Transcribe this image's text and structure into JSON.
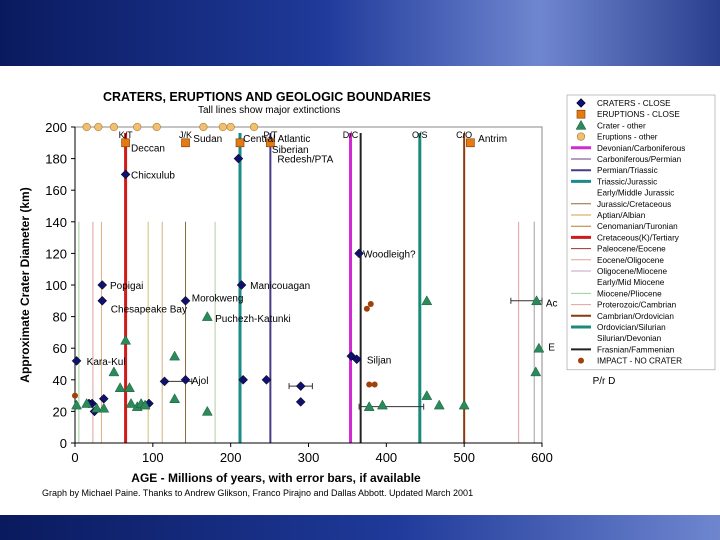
{
  "chart_data": {
    "type": "scatter",
    "title": "CRATERS, ERUPTIONS  AND GEOLOGIC BOUNDARIES",
    "subtitle": "Tall lines show major extinctions",
    "xlabel": "AGE - Millions of years, with error bars, if available",
    "ylabel": "Approximate Crater Diameter (km)",
    "xlim": [
      0,
      600
    ],
    "ylim": [
      0,
      200
    ],
    "xticks": [
      "0",
      "100",
      "200",
      "300",
      "400",
      "500",
      "600"
    ],
    "yticks": [
      "0",
      "20",
      "40",
      "60",
      "80",
      "100",
      "120",
      "140",
      "160",
      "180",
      "200"
    ],
    "grid": false,
    "legend_position": "right",
    "credit": "Graph by Michael Paine. Thanks to Andrew Glikson, Franco Pirajno and Dallas Abbott. Updated March 2001",
    "boundary_labels": [
      {
        "text": "K/T",
        "x": 65
      },
      {
        "text": "J/K",
        "x": 142
      },
      {
        "text": "P/T",
        "x": 251
      },
      {
        "text": "D/C",
        "x": 354
      },
      {
        "text": "O/S",
        "x": 443
      },
      {
        "text": "C/O",
        "x": 500
      }
    ],
    "boundaries": [
      {
        "x": 65,
        "color": "#d11a1a",
        "tall": true,
        "width": 3
      },
      {
        "x": 142,
        "color": "#8a6a3a",
        "tall": false,
        "width": 1
      },
      {
        "x": 212,
        "color": "#1a8a8a",
        "tall": true,
        "width": 3
      },
      {
        "x": 251,
        "color": "#4a3a8a",
        "tall": true,
        "width": 2
      },
      {
        "x": 354,
        "color": "#d02ad0",
        "tall": true,
        "width": 3
      },
      {
        "x": 367,
        "color": "#222222",
        "tall": true,
        "width": 2
      },
      {
        "x": 443,
        "color": "#1a8a7a",
        "tall": true,
        "width": 3
      },
      {
        "x": 500,
        "color": "#8b3a0a",
        "tall": true,
        "width": 2
      },
      {
        "x": 23,
        "color": "#e0a0a0",
        "tall": false,
        "width": 1
      },
      {
        "x": 34,
        "color": "#e0b080",
        "tall": false,
        "width": 1
      },
      {
        "x": 5,
        "color": "#9ad09a",
        "tall": false,
        "width": 1
      },
      {
        "x": 112,
        "color": "#d0b080",
        "tall": false,
        "width": 1
      },
      {
        "x": 94,
        "color": "#d0c070",
        "tall": false,
        "width": 1
      },
      {
        "x": 180,
        "color": "#b0d0a0",
        "tall": false,
        "width": 1
      },
      {
        "x": 570,
        "color": "#e0a0a0",
        "tall": false,
        "width": 1
      },
      {
        "x": 590,
        "color": "#a0a0a0",
        "tall": false,
        "width": 1
      }
    ],
    "series": [
      {
        "name": "CRATERS - CLOSE",
        "marker": "diamond",
        "color": "#10106e",
        "points": [
          [
            65,
            170
          ],
          [
            35,
            100
          ],
          [
            35,
            90
          ],
          [
            142,
            90
          ],
          [
            214,
            100
          ],
          [
            365,
            120
          ],
          [
            2,
            52
          ],
          [
            355,
            55
          ],
          [
            362,
            53
          ],
          [
            37,
            28
          ],
          [
            22,
            25
          ],
          [
            18,
            25
          ],
          [
            25,
            20
          ],
          [
            95,
            25
          ],
          [
            115,
            39
          ],
          [
            142,
            40
          ],
          [
            216,
            40
          ],
          [
            246,
            40
          ],
          [
            290,
            36
          ],
          [
            290,
            26
          ],
          [
            210,
            180
          ]
        ]
      },
      {
        "name": "ERUPTIONS - CLOSE",
        "marker": "square",
        "color": "#e57b10",
        "points": [
          [
            65,
            190
          ],
          [
            142,
            190
          ],
          [
            212,
            190
          ],
          [
            251,
            190
          ],
          [
            508,
            190
          ]
        ]
      },
      {
        "name": "Crater - other",
        "marker": "triangle",
        "color": "#2a8a5a",
        "points": [
          [
            2,
            24
          ],
          [
            15,
            25
          ],
          [
            28,
            22
          ],
          [
            37,
            22
          ],
          [
            50,
            45
          ],
          [
            58,
            35
          ],
          [
            65,
            65
          ],
          [
            70,
            35
          ],
          [
            72,
            25
          ],
          [
            80,
            23
          ],
          [
            85,
            25
          ],
          [
            90,
            24
          ],
          [
            128,
            55
          ],
          [
            128,
            28
          ],
          [
            170,
            80
          ],
          [
            170,
            20
          ],
          [
            378,
            23
          ],
          [
            395,
            24
          ],
          [
            452,
            90
          ],
          [
            452,
            30
          ],
          [
            468,
            24
          ],
          [
            500,
            24
          ],
          [
            593,
            90
          ],
          [
            596,
            60
          ],
          [
            592,
            45
          ]
        ]
      },
      {
        "name": "Eruptions - other",
        "marker": "circle",
        "color": "#f0c070",
        "points": [
          [
            15,
            200
          ],
          [
            30,
            200
          ],
          [
            50,
            200
          ],
          [
            80,
            200
          ],
          [
            105,
            200
          ],
          [
            165,
            200
          ],
          [
            190,
            200
          ],
          [
            200,
            200
          ],
          [
            230,
            200
          ]
        ]
      },
      {
        "name": "IMPACT - NO CRATER",
        "marker": "dot",
        "color": "#a0400a",
        "points": [
          [
            0,
            30
          ],
          [
            375,
            85
          ],
          [
            380,
            88
          ],
          [
            378,
            37
          ],
          [
            385,
            37
          ]
        ]
      }
    ],
    "error_bars": [
      {
        "x": 290,
        "y": 36,
        "lo": 275,
        "hi": 305
      },
      {
        "x": 395,
        "y": 23,
        "lo": 365,
        "hi": 448
      },
      {
        "x": 593,
        "y": 90,
        "lo": 560,
        "hi": 600
      },
      {
        "x": 130,
        "y": 39,
        "lo": 115,
        "hi": 150
      }
    ],
    "annotations": [
      {
        "text": "Deccan",
        "x": 72,
        "y": 187
      },
      {
        "text": "Sudan",
        "x": 152,
        "y": 193
      },
      {
        "text": "Central Atlantic",
        "x": 216,
        "y": 193
      },
      {
        "text": "Siberian",
        "x": 253,
        "y": 186
      },
      {
        "text": "Redesh/PTA",
        "x": 260,
        "y": 180
      },
      {
        "text": "Antrim",
        "x": 518,
        "y": 193
      },
      {
        "text": "Chicxulub",
        "x": 72,
        "y": 170
      },
      {
        "text": "Woodleigh?",
        "x": 370,
        "y": 120
      },
      {
        "text": "Popigai",
        "x": 45,
        "y": 100
      },
      {
        "text": "Manicouagan",
        "x": 225,
        "y": 100
      },
      {
        "text": "Morokweng",
        "x": 150,
        "y": 92
      },
      {
        "text": "Chesapeake Bay",
        "x": 46,
        "y": 85
      },
      {
        "text": "Puchezh-Katunki",
        "x": 180,
        "y": 79
      },
      {
        "text": "Siljan",
        "x": 375,
        "y": 53
      },
      {
        "text": "Kara-Kul",
        "x": 15,
        "y": 52
      },
      {
        "text": "Ajol",
        "x": 150,
        "y": 40
      },
      {
        "text": "Ac",
        "x": 605,
        "y": 89
      },
      {
        "text": "E",
        "x": 608,
        "y": 61
      },
      {
        "text": "P/r D",
        "x": 665,
        "y": 40
      }
    ],
    "legend": [
      {
        "label": "CRATERS - CLOSE",
        "kind": "diamond",
        "color": "#10106e"
      },
      {
        "label": "ERUPTIONS - CLOSE",
        "kind": "square",
        "color": "#e57b10"
      },
      {
        "label": "Crater - other",
        "kind": "triangle",
        "color": "#2a8a5a"
      },
      {
        "label": "Eruptions - other",
        "kind": "circle",
        "color": "#f0c070"
      },
      {
        "label": "Devonian/Carboniferous",
        "kind": "line",
        "color": "#d02ad0",
        "w": 3
      },
      {
        "label": "Carboniferous/Permian",
        "kind": "line",
        "color": "#6a3a8a",
        "w": 1
      },
      {
        "label": "Permian/Triassic",
        "kind": "line",
        "color": "#4a3a8a",
        "w": 2
      },
      {
        "label": "Triassic/Jurassic",
        "kind": "line",
        "color": "#1a8a8a",
        "w": 3
      },
      {
        "label": "Early/Middle Jurassic",
        "kind": "none",
        "color": "#ffffff",
        "w": 1
      },
      {
        "label": "Jurassic/Cretaceous",
        "kind": "line",
        "color": "#8a6a3a",
        "w": 1
      },
      {
        "label": "Aptian/Albian",
        "kind": "line",
        "color": "#d0a040",
        "w": 1
      },
      {
        "label": "Cenomanian/Turonian",
        "kind": "line",
        "color": "#b08030",
        "w": 1
      },
      {
        "label": "Cretaceous(K)/Tertiary",
        "kind": "line",
        "color": "#d11a1a",
        "w": 3
      },
      {
        "label": "Paleocene/Eocene",
        "kind": "line",
        "color": "#a03030",
        "w": 1
      },
      {
        "label": "Eocene/Oligocene",
        "kind": "line",
        "color": "#e0a0a0",
        "w": 1
      },
      {
        "label": "Oligocene/Miocene",
        "kind": "line",
        "color": "#c0a0c0",
        "w": 1
      },
      {
        "label": "Early/Mid Miocene",
        "kind": "none",
        "color": "#ffffff",
        "w": 1
      },
      {
        "label": "Miocene/Pliocene",
        "kind": "line",
        "color": "#9ad09a",
        "w": 1
      },
      {
        "label": "Proterozoic/Cambrian",
        "kind": "line",
        "color": "#e0a0a0",
        "w": 1
      },
      {
        "label": "Cambrian/Ordovician",
        "kind": "line",
        "color": "#8b3a0a",
        "w": 2
      },
      {
        "label": "Ordovician/Silurian",
        "kind": "line",
        "color": "#1a8a7a",
        "w": 3
      },
      {
        "label": "Silurian/Devonian",
        "kind": "none",
        "color": "#ffffff",
        "w": 1
      },
      {
        "label": "Frasnian/Fammenian",
        "kind": "line",
        "color": "#222222",
        "w": 2
      },
      {
        "label": "IMPACT - NO CRATER",
        "kind": "dot",
        "color": "#a0400a"
      }
    ]
  }
}
